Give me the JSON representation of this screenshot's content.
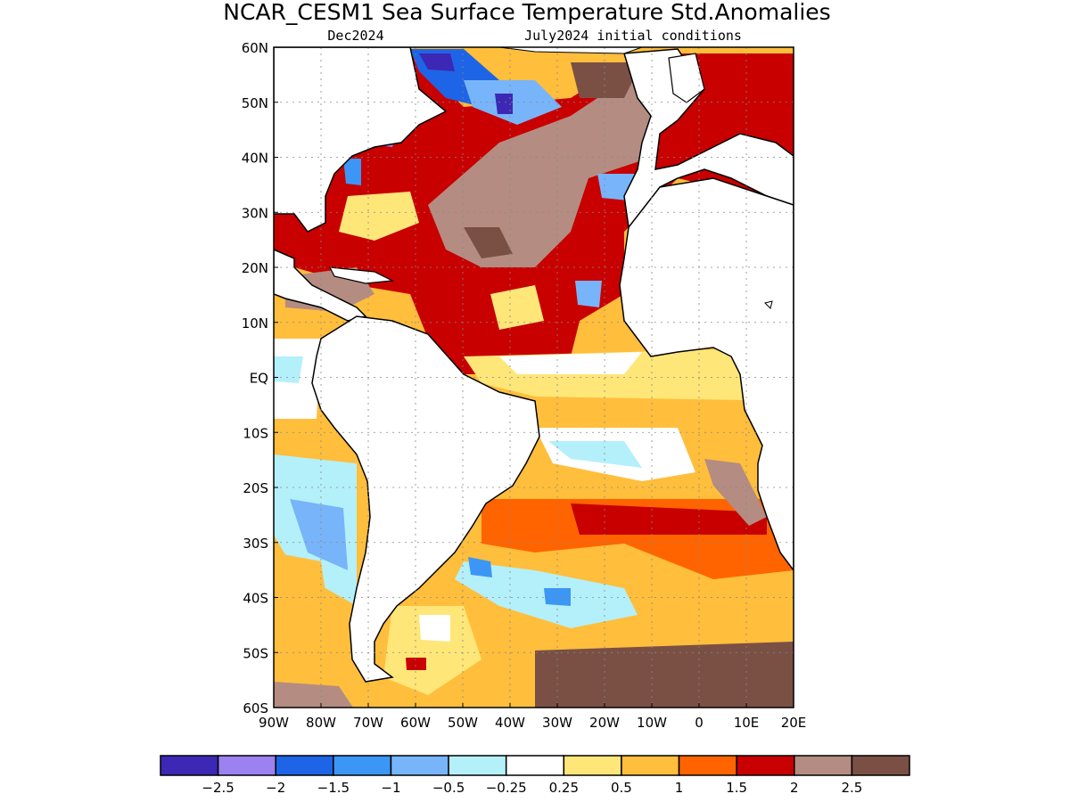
{
  "title": "NCAR_CESM1 Sea Surface Temperature Std.Anomalies",
  "subtitle_left": "Dec2024",
  "subtitle_right": "July2024 initial conditions",
  "map": {
    "region": "Atlantic Ocean",
    "lat_range": [
      -60,
      60
    ],
    "lon_range": [
      -90,
      20
    ],
    "grid": true,
    "lat_labels": [
      "60N",
      "50N",
      "40N",
      "30N",
      "20N",
      "10N",
      "EQ",
      "10S",
      "20S",
      "30S",
      "40S",
      "50S",
      "60S"
    ],
    "lon_labels": [
      "90W",
      "80W",
      "70W",
      "60W",
      "50W",
      "40W",
      "30W",
      "20W",
      "10W",
      "0",
      "10E",
      "20E"
    ]
  },
  "colorbar": {
    "colors": [
      "#3c28b4",
      "#9b82f0",
      "#1e64e6",
      "#3c96f5",
      "#78b4fa",
      "#b4f0fa",
      "#ffffff",
      "#ffe678",
      "#ffbe3c",
      "#ff6400",
      "#c80000",
      "#b48c82",
      "#7a5045"
    ],
    "labels": [
      "-2.5",
      "-2",
      "-1.5",
      "-1",
      "-0.5",
      "-0.25",
      "0.25",
      "0.5",
      "1",
      "1.5",
      "2",
      "2.5"
    ]
  }
}
